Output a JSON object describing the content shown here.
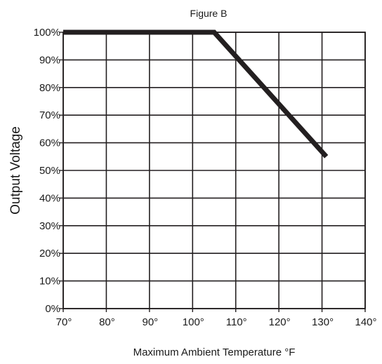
{
  "chart_data": {
    "type": "line",
    "title": "Figure B",
    "xlabel": "Maximum Ambient Temperature °F",
    "ylabel": "Output Voltage",
    "xlim": [
      70,
      140
    ],
    "ylim": [
      0,
      100
    ],
    "x_ticks": [
      70,
      80,
      90,
      100,
      110,
      120,
      130,
      140
    ],
    "x_tick_labels": [
      "70°",
      "80°",
      "90°",
      "100°",
      "110°",
      "120°",
      "130°",
      "140°"
    ],
    "y_ticks": [
      0,
      10,
      20,
      30,
      40,
      50,
      60,
      70,
      80,
      90,
      100
    ],
    "y_tick_labels": [
      "0%",
      "10%",
      "20%",
      "30%",
      "40%",
      "50%",
      "60%",
      "70%",
      "80%",
      "90%",
      "100%"
    ],
    "grid": true,
    "legend": "none",
    "series": [
      {
        "color": "#231f20",
        "x": [
          70,
          105,
          131
        ],
        "y": [
          100,
          100,
          55
        ]
      }
    ]
  }
}
